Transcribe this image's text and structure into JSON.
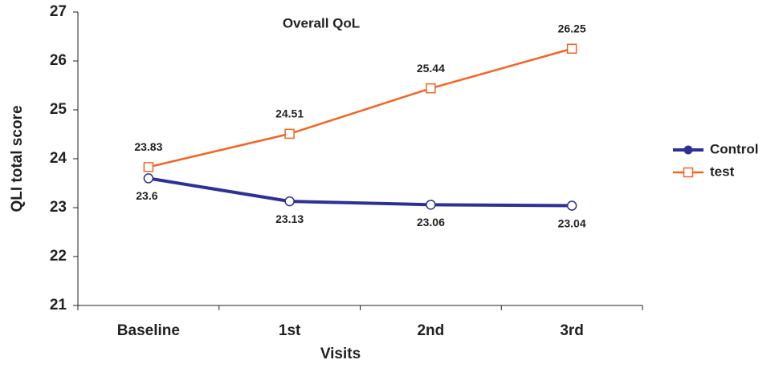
{
  "chart_data": {
    "type": "line",
    "title": "Overall QoL",
    "x_label": "Visits",
    "y_label": "QLI total score",
    "categories": [
      "Baseline",
      "1st",
      "2nd",
      "3rd"
    ],
    "series": [
      {
        "name": "Control",
        "color": "#2e3192",
        "marker": "circle",
        "values": [
          23.6,
          23.13,
          23.06,
          23.04
        ]
      },
      {
        "name": "test",
        "color": "#f26522",
        "marker": "square",
        "values": [
          23.83,
          24.51,
          25.44,
          26.25
        ]
      }
    ],
    "ylim": [
      21,
      27
    ],
    "yticks": [
      21,
      22,
      23,
      24,
      25,
      26,
      27
    ],
    "legend": "right"
  }
}
